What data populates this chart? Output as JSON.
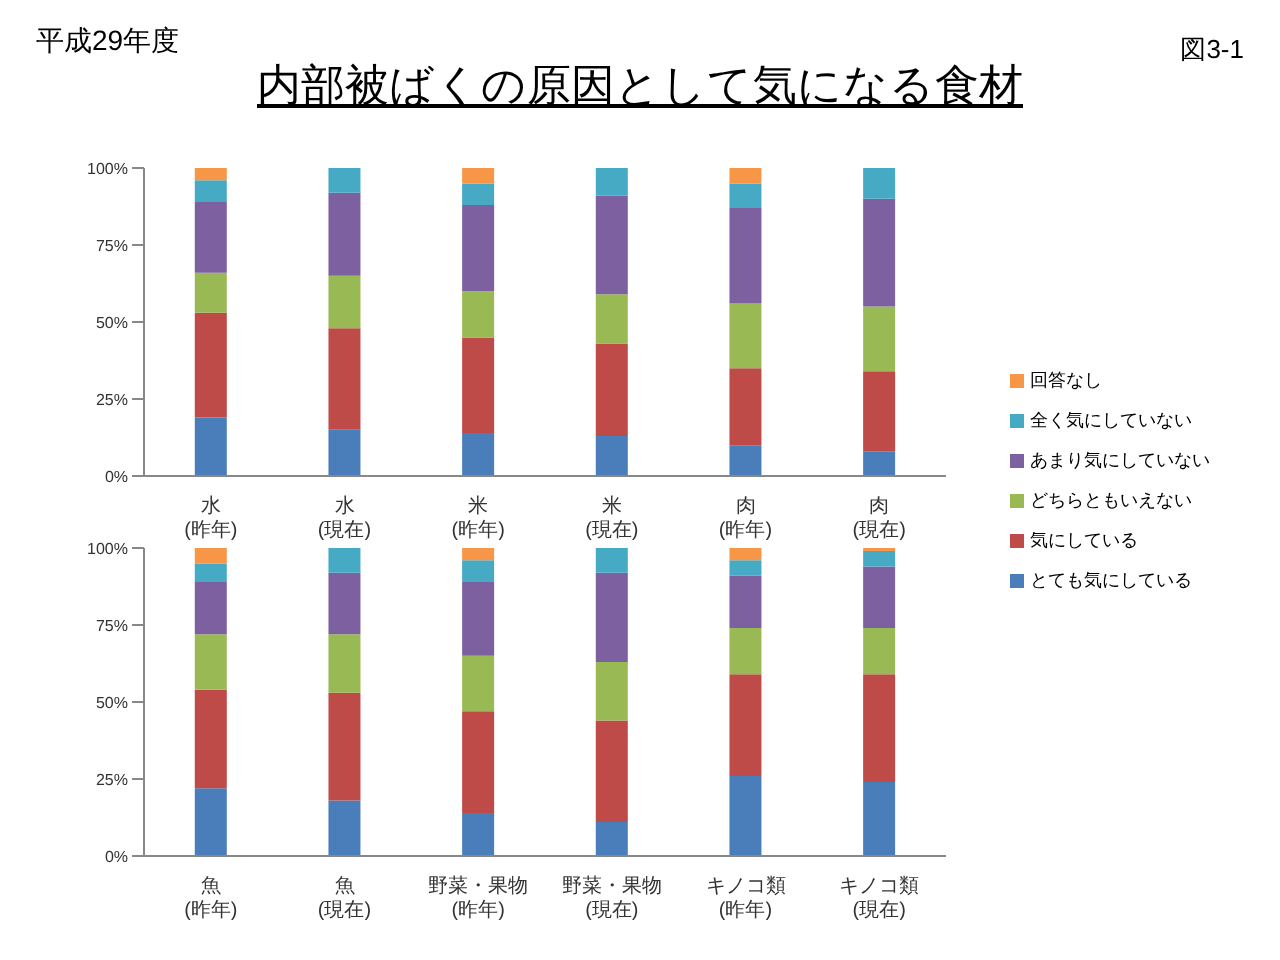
{
  "chart_data": [
    {
      "type": "bar",
      "stacked": true,
      "title": "内部被ばくの原因として気になる食材",
      "annotations": [
        "平成29年度",
        "図3-1"
      ],
      "legend": "right",
      "categories": [
        "水\n(昨年)",
        "水\n(現在)",
        "米\n(昨年)",
        "米\n(現在)",
        "肉\n(昨年)",
        "肉\n(現在)"
      ],
      "ylim": [
        0,
        100
      ],
      "yticks": [
        {
          "value": 0,
          "label": "0%"
        },
        {
          "value": 25,
          "label": "25%"
        },
        {
          "value": 50,
          "label": "50%"
        },
        {
          "value": 75,
          "label": "75%"
        },
        {
          "value": 100,
          "label": "100%"
        }
      ],
      "series": [
        {
          "name": "とても気にしている",
          "color": "#4a7ebb",
          "values": [
            19,
            15,
            14,
            13,
            10,
            8
          ]
        },
        {
          "name": "気にしている",
          "color": "#be4b48",
          "values": [
            34,
            33,
            31,
            30,
            25,
            26
          ]
        },
        {
          "name": "どちらともいえない",
          "color": "#98b954",
          "values": [
            13,
            17,
            15,
            16,
            21,
            21
          ]
        },
        {
          "name": "あまり気にしていない",
          "color": "#7d60a0",
          "values": [
            23,
            27,
            28,
            32,
            31,
            35
          ]
        },
        {
          "name": "全く気にしていない",
          "color": "#46aac5",
          "values": [
            7,
            8,
            7,
            9,
            8,
            10
          ]
        },
        {
          "name": "回答なし",
          "color": "#f79646",
          "values": [
            4,
            0,
            5,
            0,
            5,
            0
          ]
        }
      ]
    },
    {
      "type": "bar",
      "stacked": true,
      "categories": [
        "魚\n(昨年)",
        "魚\n(現在)",
        "野菜・果物\n(昨年)",
        "野菜・果物\n(現在)",
        "キノコ類\n(昨年)",
        "キノコ類\n(現在)"
      ],
      "ylim": [
        0,
        100
      ],
      "yticks": [
        {
          "value": 0,
          "label": "0%"
        },
        {
          "value": 25,
          "label": "25%"
        },
        {
          "value": 50,
          "label": "50%"
        },
        {
          "value": 75,
          "label": "75%"
        },
        {
          "value": 100,
          "label": "100%"
        }
      ],
      "series": [
        {
          "color": "#4a7ebb",
          "values": [
            22,
            18,
            14,
            11,
            26,
            24
          ]
        },
        {
          "color": "#be4b48",
          "values": [
            32,
            35,
            33,
            33,
            33,
            35
          ]
        },
        {
          "color": "#98b954",
          "values": [
            18,
            19,
            18,
            19,
            15,
            15
          ]
        },
        {
          "color": "#7d60a0",
          "values": [
            17,
            20,
            24,
            29,
            17,
            20
          ]
        },
        {
          "color": "#46aac5",
          "values": [
            6,
            8,
            7,
            8,
            5,
            5
          ]
        },
        {
          "color": "#f79646",
          "values": [
            5,
            0,
            4,
            0,
            4,
            1
          ]
        }
      ]
    }
  ]
}
